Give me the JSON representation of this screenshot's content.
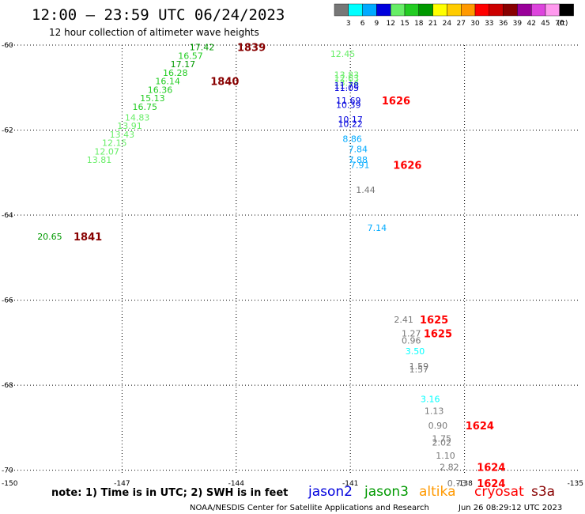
{
  "header": {
    "title": "12:00 – 23:59 UTC 06/24/2023",
    "subtitle": "12 hour collection of altimeter wave heights"
  },
  "colorbar": {
    "colors": [
      "#777777",
      "#00ffff",
      "#00aaff",
      "#0000dd",
      "#66ee66",
      "#22cc22",
      "#009900",
      "#ffff00",
      "#ffcc00",
      "#ff9900",
      "#ff0000",
      "#cc0000",
      "#880000",
      "#990099",
      "#dd44dd",
      "#ff99ee",
      "#000000"
    ],
    "labels": [
      "3",
      "6",
      "9",
      "12",
      "15",
      "18",
      "21",
      "24",
      "27",
      "30",
      "33",
      "36",
      "39",
      "42",
      "45",
      "70"
    ],
    "unit": "(ft)"
  },
  "chart_data": {
    "type": "scatter",
    "xlim": [
      -150,
      -135
    ],
    "ylim": [
      -70.1,
      -60
    ],
    "x_ticks": [
      {
        "value": -150,
        "label": "-150"
      },
      {
        "value": -147,
        "label": "-147"
      },
      {
        "value": -144,
        "label": "-144"
      },
      {
        "value": -141,
        "label": "-141"
      },
      {
        "value": -138,
        "label": "-138"
      },
      {
        "value": -135,
        "label": "-135"
      }
    ],
    "y_ticks": [
      {
        "value": -60,
        "label": "-60"
      },
      {
        "value": -62,
        "label": "-62"
      },
      {
        "value": -64,
        "label": "-64"
      },
      {
        "value": -66,
        "label": "-66"
      },
      {
        "value": -68,
        "label": "-68"
      },
      {
        "value": -70,
        "label": "-70"
      }
    ],
    "grid": "dotted",
    "wave_heights": [
      {
        "lon": -144.9,
        "lat": -60.05,
        "label": "17.42",
        "color": "#009900"
      },
      {
        "lon": -145.2,
        "lat": -60.25,
        "label": "16.57",
        "color": "#22cc22"
      },
      {
        "lon": -145.4,
        "lat": -60.45,
        "label": "17.17",
        "color": "#009900"
      },
      {
        "lon": -145.6,
        "lat": -60.65,
        "label": "16.28",
        "color": "#22cc22"
      },
      {
        "lon": -145.8,
        "lat": -60.85,
        "label": "16.14",
        "color": "#22cc22"
      },
      {
        "lon": -146.0,
        "lat": -61.05,
        "label": "16.36",
        "color": "#22cc22"
      },
      {
        "lon": -146.2,
        "lat": -61.25,
        "label": "15.13",
        "color": "#22cc22"
      },
      {
        "lon": -146.4,
        "lat": -61.45,
        "label": "16.75",
        "color": "#22cc22"
      },
      {
        "lon": -146.6,
        "lat": -61.7,
        "label": "14.83",
        "color": "#66ee66"
      },
      {
        "lon": -146.8,
        "lat": -61.9,
        "label": "13.91",
        "color": "#66ee66"
      },
      {
        "lon": -147.0,
        "lat": -62.1,
        "label": "13.43",
        "color": "#66ee66"
      },
      {
        "lon": -147.2,
        "lat": -62.3,
        "label": "12.15",
        "color": "#66ee66"
      },
      {
        "lon": -147.4,
        "lat": -62.5,
        "label": "12.07",
        "color": "#66ee66"
      },
      {
        "lon": -147.6,
        "lat": -62.7,
        "label": "13.81",
        "color": "#66ee66"
      },
      {
        "lon": -148.9,
        "lat": -64.5,
        "label": "20.65",
        "color": "#009900"
      },
      {
        "lon": -141.2,
        "lat": -60.2,
        "label": "12.45",
        "color": "#66ee66"
      },
      {
        "lon": -141.1,
        "lat": -60.7,
        "label": "13.83",
        "color": "#66ee66"
      },
      {
        "lon": -141.1,
        "lat": -60.78,
        "label": "12.63",
        "color": "#66ee66"
      },
      {
        "lon": -141.1,
        "lat": -60.88,
        "label": "13.14",
        "color": "#66ee66"
      },
      {
        "lon": -141.1,
        "lat": -60.95,
        "label": "11.78",
        "color": "#0000dd"
      },
      {
        "lon": -141.1,
        "lat": -61.0,
        "label": "11.05",
        "color": "#0000dd"
      },
      {
        "lon": -141.05,
        "lat": -61.3,
        "label": "11.69",
        "color": "#0000dd"
      },
      {
        "lon": -141.05,
        "lat": -61.4,
        "label": "10.39",
        "color": "#0000dd"
      },
      {
        "lon": -141.0,
        "lat": -61.75,
        "label": "10.17",
        "color": "#0000dd"
      },
      {
        "lon": -141.0,
        "lat": -61.85,
        "label": "10.22",
        "color": "#0000dd"
      },
      {
        "lon": -140.95,
        "lat": -62.2,
        "label": "8.86",
        "color": "#00aaff"
      },
      {
        "lon": -140.8,
        "lat": -62.45,
        "label": "7.84",
        "color": "#00aaff"
      },
      {
        "lon": -140.8,
        "lat": -62.7,
        "label": "7.88",
        "color": "#00aaff"
      },
      {
        "lon": -140.75,
        "lat": -62.82,
        "label": "7.91",
        "color": "#00aaff"
      },
      {
        "lon": -140.6,
        "lat": -63.4,
        "label": "1.44",
        "color": "#777777"
      },
      {
        "lon": -140.3,
        "lat": -64.3,
        "label": "7.14",
        "color": "#00aaff"
      },
      {
        "lon": -139.6,
        "lat": -66.45,
        "label": "2.41",
        "color": "#777777"
      },
      {
        "lon": -139.4,
        "lat": -66.78,
        "label": "1.27",
        "color": "#777777"
      },
      {
        "lon": -139.4,
        "lat": -66.95,
        "label": "0.96",
        "color": "#777777"
      },
      {
        "lon": -139.3,
        "lat": -67.2,
        "label": "3.50",
        "color": "#00ffff"
      },
      {
        "lon": -139.2,
        "lat": -67.55,
        "label": "1.59",
        "color": "#777777"
      },
      {
        "lon": -139.2,
        "lat": -67.63,
        "label": "1.57",
        "color": "#777777"
      },
      {
        "lon": -138.9,
        "lat": -68.32,
        "label": "3.16",
        "color": "#00ffff"
      },
      {
        "lon": -138.8,
        "lat": -68.6,
        "label": "1.13",
        "color": "#777777"
      },
      {
        "lon": -138.7,
        "lat": -68.95,
        "label": "0.90",
        "color": "#777777"
      },
      {
        "lon": -138.6,
        "lat": -69.25,
        "label": "1.75",
        "color": "#777777"
      },
      {
        "lon": -138.6,
        "lat": -69.35,
        "label": "2.02",
        "color": "#777777"
      },
      {
        "lon": -138.5,
        "lat": -69.65,
        "label": "1.10",
        "color": "#777777"
      },
      {
        "lon": -138.4,
        "lat": -69.92,
        "label": "2.82",
        "color": "#777777"
      },
      {
        "lon": -138.2,
        "lat": -70.3,
        "label": "0.73",
        "color": "#777777"
      }
    ],
    "pass_times": [
      {
        "lon": -143.6,
        "lat": -60.05,
        "label": "1839",
        "color": "#880000"
      },
      {
        "lon": -144.3,
        "lat": -60.85,
        "label": "1840",
        "color": "#880000"
      },
      {
        "lon": -147.9,
        "lat": -64.5,
        "label": "1841",
        "color": "#880000"
      },
      {
        "lon": -139.8,
        "lat": -61.3,
        "label": "1626",
        "color": "#ff0000"
      },
      {
        "lon": -139.5,
        "lat": -62.82,
        "label": "1626",
        "color": "#ff0000"
      },
      {
        "lon": -138.8,
        "lat": -66.45,
        "label": "1625",
        "color": "#ff0000"
      },
      {
        "lon": -138.7,
        "lat": -66.78,
        "label": "1625",
        "color": "#ff0000"
      },
      {
        "lon": -137.6,
        "lat": -68.95,
        "label": "1624",
        "color": "#ff0000"
      },
      {
        "lon": -137.3,
        "lat": -69.92,
        "label": "1624",
        "color": "#ff0000"
      },
      {
        "lon": -137.3,
        "lat": -70.3,
        "label": "1624",
        "color": "#ff0000"
      }
    ]
  },
  "footer": {
    "note": "note: 1) Time is in UTC; 2) SWH is in feet",
    "satellites": [
      {
        "name": "jason2",
        "color": "#0000dd"
      },
      {
        "name": "jason3",
        "color": "#009900"
      },
      {
        "name": "altika",
        "color": "#ff9900"
      },
      {
        "name": "cryosat",
        "color": "#ff0000"
      },
      {
        "name": "s3a",
        "color": "#880000"
      }
    ],
    "credit": "NOAA/NESDIS Center for Satellite Applications and Research",
    "timestamp": "Jun 26 08:29:12 UTC 2023"
  }
}
